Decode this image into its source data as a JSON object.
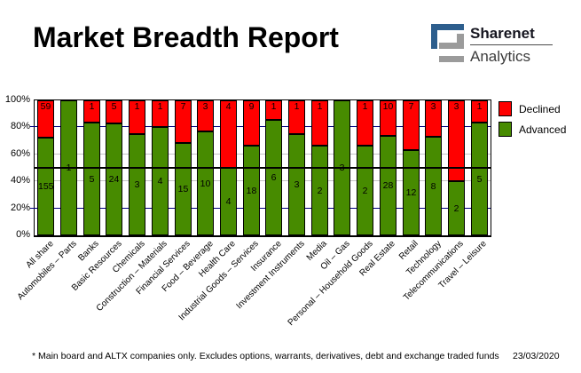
{
  "header": {
    "title": "Market Breadth Report",
    "brand_name": "Sharenet",
    "brand_sub": "Analytics"
  },
  "chart_data": {
    "type": "bar",
    "variant": "stacked-100-percent",
    "title": "Market Breadth Report",
    "categories": [
      "All share",
      "Automobiles – Parts",
      "Banks",
      "Basic Resources",
      "Chemicals",
      "Construction – Materials",
      "Financial Services",
      "Food – Beverage",
      "Health Care",
      "Industrial Goods – Services",
      "Insurance",
      "Investment Instruments",
      "Media",
      "Oil – Gas",
      "Personal – Household Goods",
      "Real Estate",
      "Retail",
      "Technology",
      "Telecommunications",
      "Travel – Leisure"
    ],
    "series": [
      {
        "name": "Declined",
        "color": "#ff0000",
        "values": [
          59,
          0,
          1,
          5,
          1,
          1,
          7,
          3,
          4,
          9,
          1,
          1,
          1,
          0,
          1,
          10,
          7,
          3,
          3,
          1
        ]
      },
      {
        "name": "Advanced",
        "color": "#478b00",
        "values": [
          155,
          1,
          5,
          24,
          3,
          4,
          15,
          10,
          4,
          18,
          6,
          3,
          2,
          3,
          2,
          28,
          12,
          8,
          2,
          5
        ]
      }
    ],
    "y_ticks": [
      "100%",
      "80%",
      "60%",
      "40%",
      "20%",
      "0%"
    ],
    "ylim": [
      0,
      100
    ],
    "reference_line_pct": 50,
    "grid": "on",
    "legend_position": "top-right"
  },
  "colors": {
    "declined": "#ff0000",
    "advanced": "#478b00",
    "grid_gray": "#c4c4c4",
    "grid_navy": "#000080",
    "reference_line": "#000000",
    "logo_blue": "#2d5e8d",
    "logo_gray": "#9b9b9b"
  },
  "footer": {
    "note": "* Main board and ALTX companies only. Excludes options, warrants, derivatives, debt and exchange traded funds",
    "date": "23/03/2020"
  }
}
